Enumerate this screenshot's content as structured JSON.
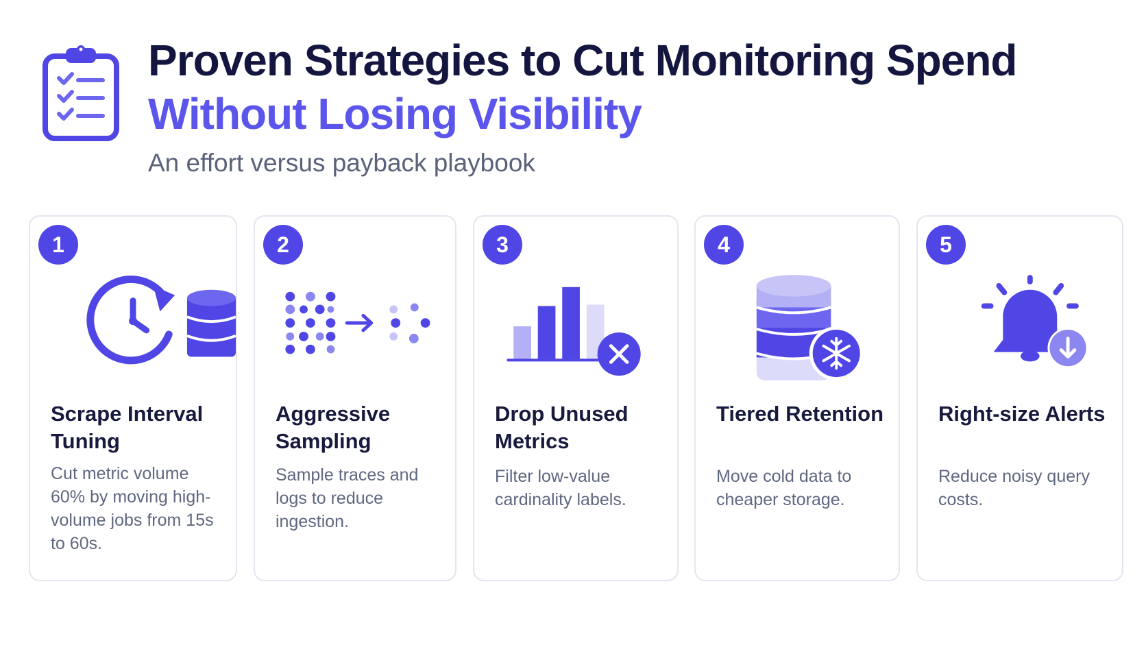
{
  "header": {
    "icon": "checklist-clipboard-icon",
    "title_line1": "Proven Strategies to Cut Monitoring Spend",
    "title_line2": "Without Losing Visibility",
    "subtitle": "An effort versus payback playbook"
  },
  "colors": {
    "accent": "#4f46e5",
    "accent_light": "#8b86f0",
    "title_dark": "#14163f",
    "title_accent": "#5b55ec",
    "card_border": "#e3e6ef"
  },
  "cards": [
    {
      "number": "1",
      "icon": "clock-refresh-database-icon",
      "title": "Scrape Interval Tuning",
      "description": "Cut metric volume 60% by moving high-volume jobs from 15s to 60s."
    },
    {
      "number": "2",
      "icon": "sampling-dots-icon",
      "title": "Aggressive Sampling",
      "description": "Sample traces and logs to reduce ingestion."
    },
    {
      "number": "3",
      "icon": "bar-chart-remove-icon",
      "title": "Drop Unused Metrics",
      "description": "Filter low-value cardinality labels."
    },
    {
      "number": "4",
      "icon": "database-snowflake-icon",
      "title": "Tiered Retention",
      "description": "Move cold data to cheaper storage."
    },
    {
      "number": "5",
      "icon": "bell-down-arrow-icon",
      "title": "Right-size Alerts",
      "description": "Reduce noisy query costs."
    }
  ]
}
